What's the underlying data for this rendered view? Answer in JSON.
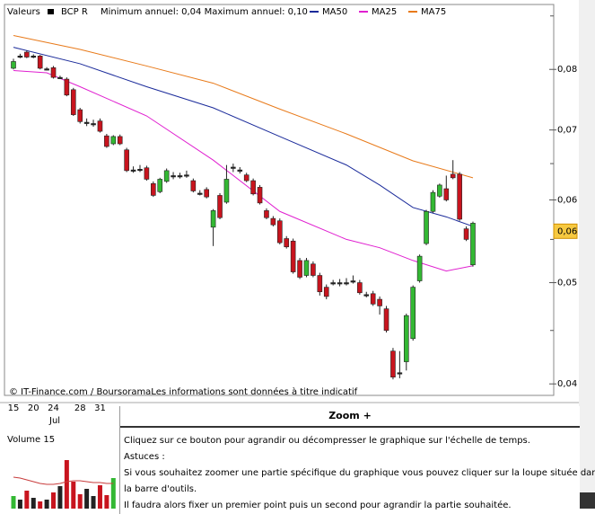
{
  "header": {
    "section": "Valeurs"
  },
  "chart_data": [
    {
      "type": "candlestick",
      "symbol": "BCP R",
      "subtitle": "Minimum annuel: 0,04 Maximum annuel: 0,10",
      "credit": "© IT-Finance.com / BoursoramaLes informations sont données à titre indicatif",
      "month_label": "Jul",
      "categories": [
        "15",
        null,
        null,
        "20",
        null,
        null,
        "24",
        null,
        null,
        null,
        "28",
        null,
        null,
        "31",
        null,
        null,
        null,
        null,
        null,
        null,
        null,
        null,
        null,
        null,
        null,
        null,
        null,
        null,
        null,
        null,
        null,
        null,
        null,
        null,
        null,
        null,
        null,
        null,
        null,
        null,
        null,
        null,
        null,
        null,
        null,
        null,
        null,
        null,
        null,
        null,
        null,
        null,
        null,
        null,
        null,
        null,
        null,
        null,
        null,
        null,
        null,
        null,
        null,
        null,
        null,
        null,
        null,
        null,
        null,
        null
      ],
      "ohlc": [
        [
          0.0802,
          0.0819,
          0.08,
          0.0814
        ],
        [
          0.0824,
          0.0828,
          0.082,
          0.0824
        ],
        [
          0.0831,
          0.0834,
          0.082,
          0.0822
        ],
        [
          0.0824,
          0.0827,
          0.082,
          0.0824
        ],
        [
          0.0824,
          0.0826,
          0.08,
          0.0802
        ],
        [
          0.0801,
          0.0804,
          0.0798,
          0.0801
        ],
        [
          0.0803,
          0.0806,
          0.0784,
          0.0786
        ],
        [
          0.0786,
          0.0789,
          0.0783,
          0.0786
        ],
        [
          0.0783,
          0.0786,
          0.0754,
          0.0756
        ],
        [
          0.0765,
          0.0768,
          0.0722,
          0.0724
        ],
        [
          0.0732,
          0.0735,
          0.071,
          0.0713
        ],
        [
          0.0712,
          0.0718,
          0.0706,
          0.0712
        ],
        [
          0.071,
          0.0716,
          0.0705,
          0.071
        ],
        [
          0.0714,
          0.0718,
          0.0696,
          0.0698
        ],
        [
          0.0691,
          0.0694,
          0.0673,
          0.0675
        ],
        [
          0.0679,
          0.0692,
          0.0677,
          0.069
        ],
        [
          0.069,
          0.0693,
          0.0677,
          0.0679
        ],
        [
          0.067,
          0.0673,
          0.0638,
          0.064
        ],
        [
          0.0641,
          0.0646,
          0.0637,
          0.0641
        ],
        [
          0.0642,
          0.0648,
          0.0638,
          0.0642
        ],
        [
          0.0644,
          0.0647,
          0.0626,
          0.0628
        ],
        [
          0.0622,
          0.0625,
          0.0604,
          0.0606
        ],
        [
          0.0611,
          0.063,
          0.0609,
          0.0628
        ],
        [
          0.0625,
          0.0643,
          0.0623,
          0.064
        ],
        [
          0.0633,
          0.0638,
          0.0628,
          0.0633
        ],
        [
          0.0633,
          0.0637,
          0.0629,
          0.0633
        ],
        [
          0.0634,
          0.064,
          0.063,
          0.0634
        ],
        [
          0.0626,
          0.0629,
          0.061,
          0.0612
        ],
        [
          0.0609,
          0.0613,
          0.0606,
          0.0609
        ],
        [
          0.0614,
          0.0617,
          0.0602,
          0.0604
        ],
        [
          0.0565,
          0.0588,
          0.0542,
          0.0586
        ],
        [
          0.0606,
          0.0609,
          0.0575,
          0.0577
        ],
        [
          0.0597,
          0.0648,
          0.0595,
          0.0628
        ],
        [
          0.0645,
          0.065,
          0.0638,
          0.0645
        ],
        [
          0.0641,
          0.0645,
          0.0636,
          0.0641
        ],
        [
          0.0634,
          0.0637,
          0.0624,
          0.0626
        ],
        [
          0.0626,
          0.0629,
          0.0606,
          0.0608
        ],
        [
          0.0617,
          0.062,
          0.0594,
          0.0596
        ],
        [
          0.0586,
          0.0589,
          0.0575,
          0.0577
        ],
        [
          0.0576,
          0.0579,
          0.0566,
          0.0568
        ],
        [
          0.0573,
          0.0576,
          0.0544,
          0.0546
        ],
        [
          0.0551,
          0.0554,
          0.0539,
          0.0541
        ],
        [
          0.0548,
          0.0551,
          0.051,
          0.0512
        ],
        [
          0.0525,
          0.0528,
          0.0504,
          0.0506
        ],
        [
          0.0508,
          0.0528,
          0.0506,
          0.0525
        ],
        [
          0.0521,
          0.0524,
          0.0506,
          0.0508
        ],
        [
          0.0508,
          0.0511,
          0.0486,
          0.049
        ],
        [
          0.0495,
          0.0498,
          0.0482,
          0.0485
        ],
        [
          0.05,
          0.0503,
          0.0497,
          0.05
        ],
        [
          0.05,
          0.0504,
          0.0496,
          0.05
        ],
        [
          0.05,
          0.0505,
          0.0497,
          0.05
        ],
        [
          0.0502,
          0.0508,
          0.0499,
          0.0502
        ],
        [
          0.05,
          0.0503,
          0.0487,
          0.0489
        ],
        [
          0.0487,
          0.049,
          0.0484,
          0.0487
        ],
        [
          0.0488,
          0.0491,
          0.0475,
          0.0477
        ],
        [
          0.0482,
          0.0485,
          0.0466,
          0.0475
        ],
        [
          0.0472,
          0.0475,
          0.0448,
          0.045
        ],
        [
          0.043,
          0.0433,
          0.0404,
          0.0406
        ],
        [
          0.041,
          0.043,
          0.0405,
          0.041
        ],
        [
          0.042,
          0.0467,
          0.0412,
          0.0465
        ],
        [
          0.0442,
          0.0497,
          0.044,
          0.0495
        ],
        [
          0.0502,
          0.0532,
          0.05,
          0.053
        ],
        [
          0.0545,
          0.0587,
          0.0543,
          0.0585
        ],
        [
          0.0585,
          0.0613,
          0.0583,
          0.061
        ],
        [
          0.0605,
          0.0622,
          0.0603,
          0.062
        ],
        [
          0.0615,
          0.0633,
          0.0598,
          0.06
        ],
        [
          0.0635,
          0.0655,
          0.0628,
          0.063
        ],
        [
          0.0635,
          0.0638,
          0.0573,
          0.0575
        ],
        [
          0.0563,
          0.0566,
          0.0548,
          0.055
        ],
        [
          0.052,
          0.0572,
          0.0518,
          0.057
        ]
      ],
      "up_color": "#33b833",
      "down_color": "#c8141e",
      "doji_color": "#222222",
      "series": [
        {
          "name": "MA50",
          "color": "#1a2a9a",
          "x": [
            0,
            10,
            20,
            30,
            40,
            50,
            55,
            60,
            65,
            69
          ],
          "values": [
            0.084,
            0.081,
            0.077,
            0.0735,
            0.069,
            0.0648,
            0.062,
            0.059,
            0.0578,
            0.0566
          ]
        },
        {
          "name": "MA25",
          "color": "#e020d0",
          "x": [
            0,
            5,
            10,
            20,
            30,
            40,
            50,
            55,
            60,
            65,
            69
          ],
          "values": [
            0.0798,
            0.0794,
            0.077,
            0.0722,
            0.0655,
            0.0585,
            0.055,
            0.054,
            0.0525,
            0.0513,
            0.0519
          ]
        },
        {
          "name": "MA75",
          "color": "#e87a1a",
          "x": [
            0,
            10,
            20,
            30,
            40,
            50,
            60,
            69
          ],
          "values": [
            0.0862,
            0.0836,
            0.0806,
            0.0776,
            0.0733,
            0.0694,
            0.0654,
            0.063
          ]
        }
      ],
      "log_scale": true,
      "ylim": [
        0.039,
        0.0923
      ],
      "yticks": [
        {
          "value": 0.04,
          "label": "0,04"
        },
        {
          "value": 0.05,
          "label": "0,05"
        },
        {
          "value": 0.06,
          "label": "0,06"
        },
        {
          "value": 0.07,
          "label": "0,07"
        },
        {
          "value": 0.08,
          "label": "0,08"
        }
      ],
      "minor_yticks": [
        0.045,
        0.055,
        0.065,
        0.09
      ],
      "last_price": {
        "value": 0.056,
        "label": "0,06"
      }
    },
    {
      "type": "bar",
      "title": "Volume 15",
      "ylim": [
        0,
        60
      ],
      "values": [
        14,
        10,
        20,
        12,
        8,
        10,
        18,
        25,
        54,
        30,
        16,
        22,
        14,
        26,
        15,
        34
      ],
      "line": {
        "color": "#c83c3c",
        "values": [
          35,
          34,
          32,
          30,
          28,
          27,
          27,
          28,
          30,
          31,
          31,
          30,
          29,
          29,
          28,
          28
        ]
      }
    }
  ],
  "tooltip": {
    "title": "Zoom +",
    "lines": [
      "Cliquez sur ce bouton pour agrandir ou décompresser le graphique sur l'échelle de temps.",
      "Astuces :",
      "Si vous souhaitez zoomer une partie spécifique du graphique vous pouvez cliquer sur la loupe située dans",
      "la barre d'outils.",
      "Il faudra alors fixer un premier point puis un second pour agrandir la partie souhaitée."
    ]
  }
}
